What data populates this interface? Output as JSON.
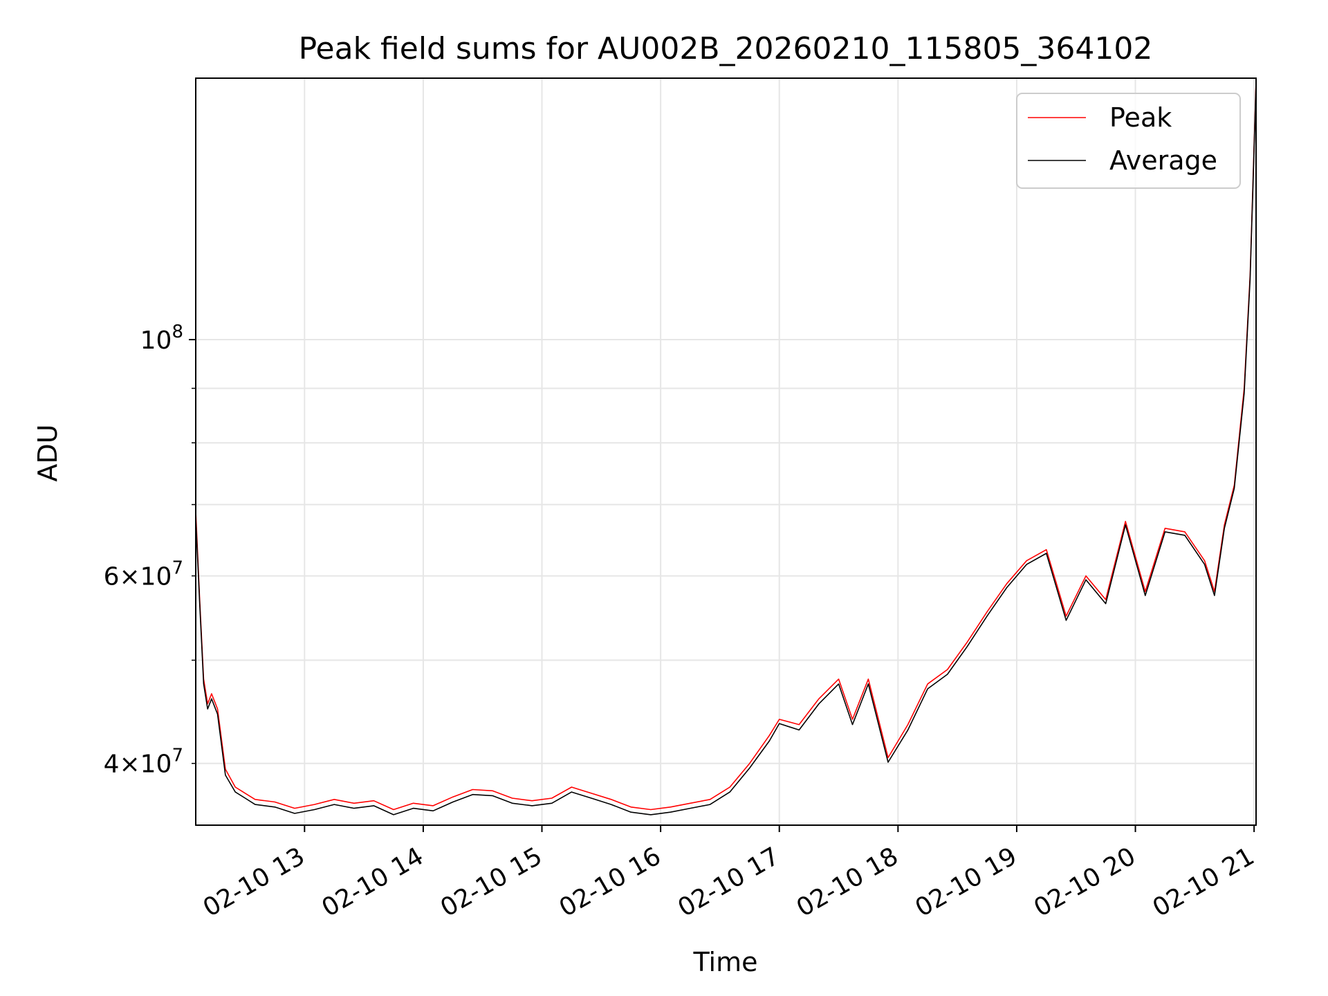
{
  "chart_data": {
    "type": "line",
    "title": "Peak field sums for AU002B_20260210_115805_364102",
    "xlabel": "Time",
    "ylabel": "ADU",
    "y_scale": "log",
    "grid": true,
    "legend_position": "top-right",
    "x_range": [
      "2026-02-10 12:05",
      "2026-02-10 21:01"
    ],
    "y_range": [
      35000000,
      176000000
    ],
    "x_ticks": [
      "02-10 13",
      "02-10 14",
      "02-10 15",
      "02-10 16",
      "02-10 17",
      "02-10 18",
      "02-10 19",
      "02-10 20",
      "02-10 21"
    ],
    "x_tick_values": [
      "2026-02-10 13:00",
      "2026-02-10 14:00",
      "2026-02-10 15:00",
      "2026-02-10 16:00",
      "2026-02-10 17:00",
      "2026-02-10 18:00",
      "2026-02-10 19:00",
      "2026-02-10 20:00",
      "2026-02-10 21:00"
    ],
    "y_major_ticks": [
      {
        "value": 100000000,
        "base": "10",
        "exp": "8"
      }
    ],
    "y_minor_labeled_ticks": [
      {
        "value": 40000000,
        "mant": "4",
        "base": "10",
        "exp": "7"
      },
      {
        "value": 60000000,
        "mant": "6",
        "base": "10",
        "exp": "7"
      }
    ],
    "y_minor_ticks": [
      40000000,
      50000000,
      60000000,
      70000000,
      80000000,
      90000000
    ],
    "series": [
      {
        "name": "Peak",
        "color": "#ff0000",
        "points": [
          [
            "2026-02-10 12:05",
            69000000
          ],
          [
            "2026-02-10 12:07",
            57000000
          ],
          [
            "2026-02-10 12:09",
            48000000
          ],
          [
            "2026-02-10 12:11",
            45500000
          ],
          [
            "2026-02-10 12:13",
            46500000
          ],
          [
            "2026-02-10 12:16",
            45000000
          ],
          [
            "2026-02-10 12:20",
            39500000
          ],
          [
            "2026-02-10 12:25",
            38000000
          ],
          [
            "2026-02-10 12:30",
            37500000
          ],
          [
            "2026-02-10 12:35",
            37000000
          ],
          [
            "2026-02-10 12:45",
            36800000
          ],
          [
            "2026-02-10 12:55",
            36300000
          ],
          [
            "2026-02-10 13:05",
            36600000
          ],
          [
            "2026-02-10 13:15",
            37000000
          ],
          [
            "2026-02-10 13:25",
            36700000
          ],
          [
            "2026-02-10 13:35",
            36900000
          ],
          [
            "2026-02-10 13:45",
            36200000
          ],
          [
            "2026-02-10 13:55",
            36700000
          ],
          [
            "2026-02-10 14:05",
            36500000
          ],
          [
            "2026-02-10 14:15",
            37200000
          ],
          [
            "2026-02-10 14:25",
            37800000
          ],
          [
            "2026-02-10 14:35",
            37700000
          ],
          [
            "2026-02-10 14:45",
            37100000
          ],
          [
            "2026-02-10 14:55",
            36900000
          ],
          [
            "2026-02-10 15:05",
            37100000
          ],
          [
            "2026-02-10 15:15",
            38000000
          ],
          [
            "2026-02-10 15:25",
            37500000
          ],
          [
            "2026-02-10 15:35",
            37000000
          ],
          [
            "2026-02-10 15:45",
            36400000
          ],
          [
            "2026-02-10 15:55",
            36200000
          ],
          [
            "2026-02-10 16:05",
            36400000
          ],
          [
            "2026-02-10 16:15",
            36700000
          ],
          [
            "2026-02-10 16:25",
            37000000
          ],
          [
            "2026-02-10 16:35",
            38000000
          ],
          [
            "2026-02-10 16:45",
            40000000
          ],
          [
            "2026-02-10 16:55",
            42500000
          ],
          [
            "2026-02-10 17:00",
            44000000
          ],
          [
            "2026-02-10 17:10",
            43500000
          ],
          [
            "2026-02-10 17:20",
            46000000
          ],
          [
            "2026-02-10 17:30",
            48000000
          ],
          [
            "2026-02-10 17:37",
            44000000
          ],
          [
            "2026-02-10 17:45",
            48000000
          ],
          [
            "2026-02-10 17:55",
            40500000
          ],
          [
            "2026-02-10 18:05",
            43500000
          ],
          [
            "2026-02-10 18:15",
            47500000
          ],
          [
            "2026-02-10 18:25",
            49000000
          ],
          [
            "2026-02-10 18:35",
            52000000
          ],
          [
            "2026-02-10 18:45",
            55500000
          ],
          [
            "2026-02-10 18:55",
            59000000
          ],
          [
            "2026-02-10 19:05",
            62000000
          ],
          [
            "2026-02-10 19:15",
            63500000
          ],
          [
            "2026-02-10 19:25",
            55000000
          ],
          [
            "2026-02-10 19:35",
            60000000
          ],
          [
            "2026-02-10 19:45",
            57000000
          ],
          [
            "2026-02-10 19:55",
            67500000
          ],
          [
            "2026-02-10 20:05",
            58000000
          ],
          [
            "2026-02-10 20:15",
            66500000
          ],
          [
            "2026-02-10 20:25",
            66000000
          ],
          [
            "2026-02-10 20:35",
            62000000
          ],
          [
            "2026-02-10 20:40",
            58000000
          ],
          [
            "2026-02-10 20:45",
            67000000
          ],
          [
            "2026-02-10 20:50",
            73000000
          ],
          [
            "2026-02-10 20:55",
            90000000
          ],
          [
            "2026-02-10 20:58",
            115000000
          ],
          [
            "2026-02-10 21:01",
            175000000
          ]
        ]
      },
      {
        "name": "Average",
        "color": "#000000",
        "points": [
          [
            "2026-02-10 12:05",
            68000000
          ],
          [
            "2026-02-10 12:07",
            56500000
          ],
          [
            "2026-02-10 12:09",
            47500000
          ],
          [
            "2026-02-10 12:11",
            45000000
          ],
          [
            "2026-02-10 12:13",
            46000000
          ],
          [
            "2026-02-10 12:16",
            44500000
          ],
          [
            "2026-02-10 12:20",
            39000000
          ],
          [
            "2026-02-10 12:25",
            37600000
          ],
          [
            "2026-02-10 12:30",
            37100000
          ],
          [
            "2026-02-10 12:35",
            36600000
          ],
          [
            "2026-02-10 12:45",
            36400000
          ],
          [
            "2026-02-10 12:55",
            35900000
          ],
          [
            "2026-02-10 13:05",
            36200000
          ],
          [
            "2026-02-10 13:15",
            36600000
          ],
          [
            "2026-02-10 13:25",
            36300000
          ],
          [
            "2026-02-10 13:35",
            36500000
          ],
          [
            "2026-02-10 13:45",
            35800000
          ],
          [
            "2026-02-10 13:55",
            36300000
          ],
          [
            "2026-02-10 14:05",
            36100000
          ],
          [
            "2026-02-10 14:15",
            36800000
          ],
          [
            "2026-02-10 14:25",
            37400000
          ],
          [
            "2026-02-10 14:35",
            37300000
          ],
          [
            "2026-02-10 14:45",
            36700000
          ],
          [
            "2026-02-10 14:55",
            36500000
          ],
          [
            "2026-02-10 15:05",
            36700000
          ],
          [
            "2026-02-10 15:15",
            37600000
          ],
          [
            "2026-02-10 15:25",
            37100000
          ],
          [
            "2026-02-10 15:35",
            36600000
          ],
          [
            "2026-02-10 15:45",
            36000000
          ],
          [
            "2026-02-10 15:55",
            35800000
          ],
          [
            "2026-02-10 16:05",
            36000000
          ],
          [
            "2026-02-10 16:15",
            36300000
          ],
          [
            "2026-02-10 16:25",
            36600000
          ],
          [
            "2026-02-10 16:35",
            37600000
          ],
          [
            "2026-02-10 16:45",
            39600000
          ],
          [
            "2026-02-10 16:55",
            42000000
          ],
          [
            "2026-02-10 17:00",
            43600000
          ],
          [
            "2026-02-10 17:10",
            43000000
          ],
          [
            "2026-02-10 17:20",
            45500000
          ],
          [
            "2026-02-10 17:30",
            47500000
          ],
          [
            "2026-02-10 17:37",
            43500000
          ],
          [
            "2026-02-10 17:45",
            47500000
          ],
          [
            "2026-02-10 17:55",
            40100000
          ],
          [
            "2026-02-10 18:05",
            43000000
          ],
          [
            "2026-02-10 18:15",
            47000000
          ],
          [
            "2026-02-10 18:25",
            48500000
          ],
          [
            "2026-02-10 18:35",
            51500000
          ],
          [
            "2026-02-10 18:45",
            55000000
          ],
          [
            "2026-02-10 18:55",
            58500000
          ],
          [
            "2026-02-10 19:05",
            61500000
          ],
          [
            "2026-02-10 19:15",
            63000000
          ],
          [
            "2026-02-10 19:25",
            54500000
          ],
          [
            "2026-02-10 19:35",
            59500000
          ],
          [
            "2026-02-10 19:45",
            56500000
          ],
          [
            "2026-02-10 19:55",
            67000000
          ],
          [
            "2026-02-10 20:05",
            57500000
          ],
          [
            "2026-02-10 20:15",
            66000000
          ],
          [
            "2026-02-10 20:25",
            65500000
          ],
          [
            "2026-02-10 20:35",
            61500000
          ],
          [
            "2026-02-10 20:40",
            57500000
          ],
          [
            "2026-02-10 20:45",
            66500000
          ],
          [
            "2026-02-10 20:50",
            72500000
          ],
          [
            "2026-02-10 20:55",
            89000000
          ],
          [
            "2026-02-10 20:58",
            114000000
          ],
          [
            "2026-02-10 21:01",
            174000000
          ]
        ]
      }
    ]
  }
}
